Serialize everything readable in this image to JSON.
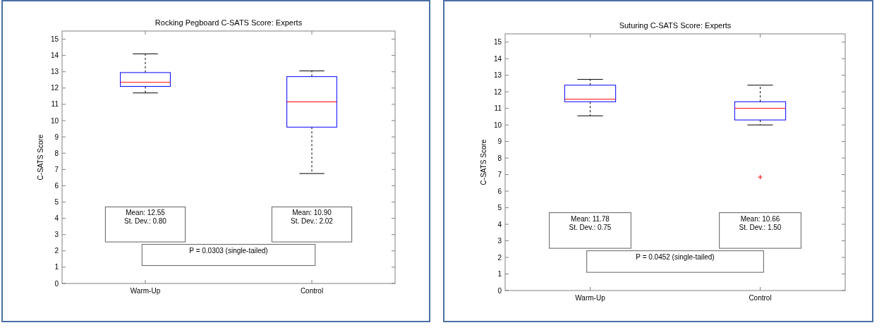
{
  "chart_data": [
    {
      "type": "box",
      "title": "Rocking Pegboard C-SATS Score: Experts",
      "ylabel": "C-SATS Score",
      "categories": [
        "Warm-Up",
        "Control"
      ],
      "ylim": [
        0,
        15.5
      ],
      "yticks": [
        0,
        1,
        2,
        3,
        4,
        5,
        6,
        7,
        8,
        9,
        10,
        11,
        12,
        13,
        14,
        15
      ],
      "boxes": [
        {
          "low": 11.7,
          "q1": 12.1,
          "median": 12.35,
          "q3": 12.95,
          "high": 14.1
        },
        {
          "low": 6.75,
          "q1": 9.6,
          "median": 11.15,
          "q3": 12.7,
          "high": 13.05
        }
      ],
      "annotations": [
        "Mean: 12.55\nSt. Dev.: 0.80",
        "Mean: 10.90\nSt. Dev.: 2.02",
        "P = 0.0303 (single-tailed)"
      ]
    },
    {
      "type": "box",
      "title": "Suturing C-SATS Score: Experts",
      "ylabel": "C-SATS Score",
      "categories": [
        "Warm-Up",
        "Control"
      ],
      "ylim": [
        0,
        15.5
      ],
      "yticks": [
        0,
        1,
        2,
        3,
        4,
        5,
        6,
        7,
        8,
        9,
        10,
        11,
        12,
        13,
        14,
        15
      ],
      "boxes": [
        {
          "low": 10.55,
          "q1": 11.4,
          "median": 11.55,
          "q3": 12.4,
          "high": 12.75
        },
        {
          "low": 10.0,
          "q1": 10.3,
          "median": 11.0,
          "q3": 11.4,
          "high": 12.4,
          "outliers": [
            6.85
          ]
        }
      ],
      "annotations": [
        "Mean: 11.78\nSt. Dev.: 0.75",
        "Mean: 10.66\nSt. Dev.: 1.50",
        "P = 0.0452 (single-tailed)"
      ]
    }
  ]
}
